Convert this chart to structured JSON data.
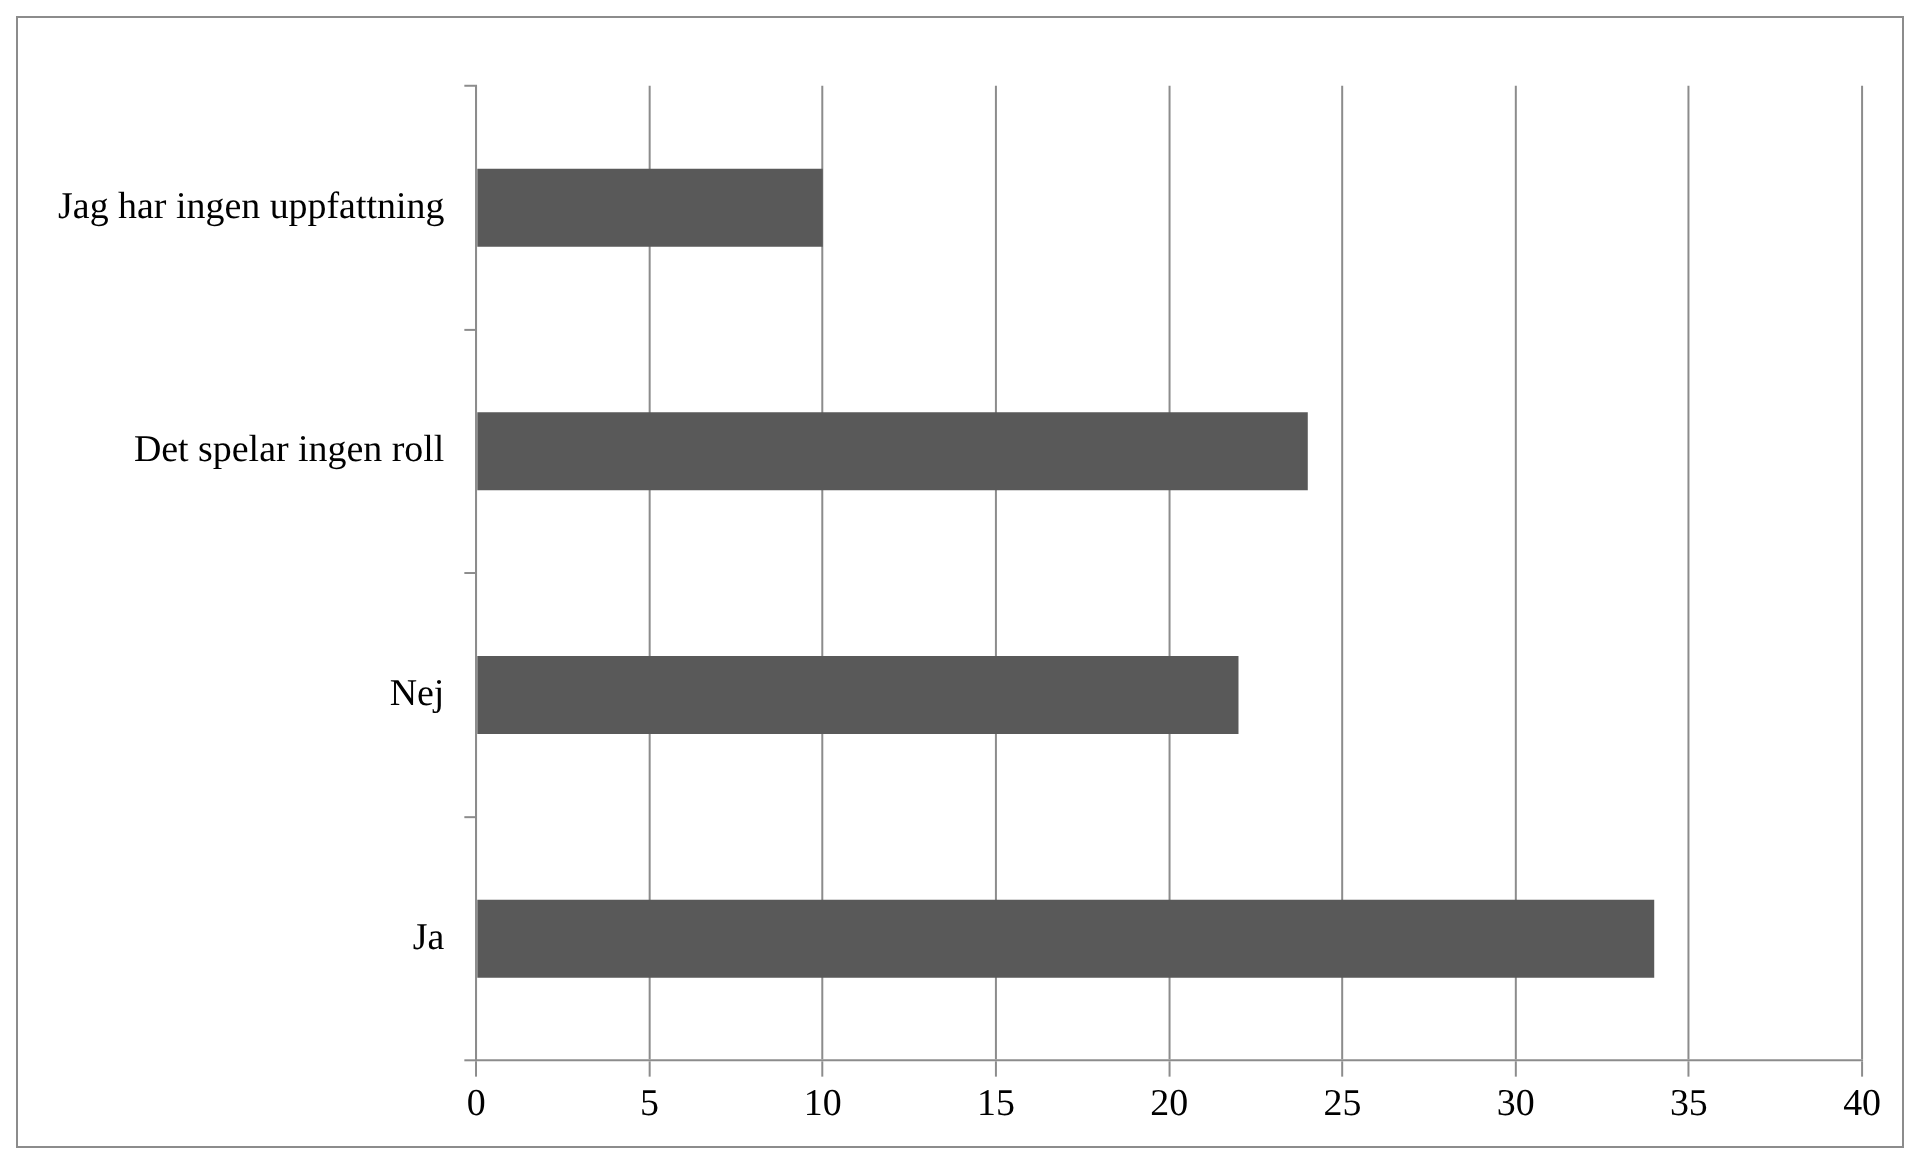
{
  "chart_data": {
    "type": "bar",
    "orientation": "horizontal",
    "categories": [
      "Jag har ingen uppfattning",
      "Det spelar ingen roll",
      "Nej",
      "Ja"
    ],
    "values": [
      10,
      24,
      22,
      34
    ],
    "color": "#595959",
    "xlim": [
      0,
      40
    ],
    "xticks": [
      0,
      5,
      10,
      15,
      20,
      25,
      30,
      35,
      40
    ],
    "grid": "x"
  }
}
